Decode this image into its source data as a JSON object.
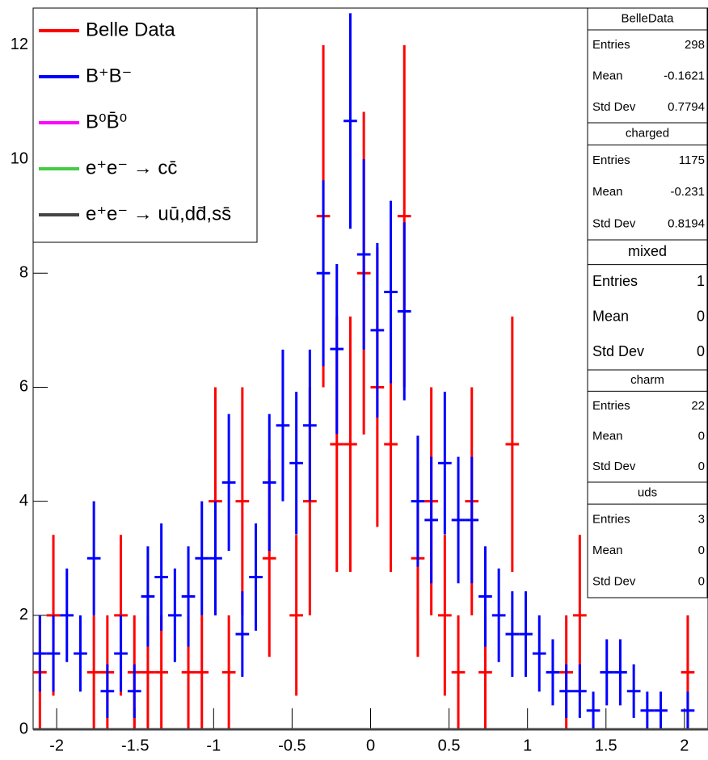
{
  "chart_data": {
    "type": "errorbar_histogram",
    "bins": [
      -2.15,
      -2.064,
      -1.978,
      -1.892,
      -1.806,
      -1.72,
      -1.634,
      -1.548,
      -1.462,
      -1.376,
      -1.29,
      -1.204,
      -1.118,
      -1.032,
      -0.946,
      -0.86,
      -0.774,
      -0.688,
      -0.602,
      -0.516,
      -0.43,
      -0.344,
      -0.258,
      -0.172,
      -0.086,
      0,
      0.086,
      0.172,
      0.258,
      0.344,
      0.43,
      0.516,
      0.602,
      0.688,
      0.774,
      0.86,
      0.946,
      1.032,
      1.118,
      1.204,
      1.29,
      1.376,
      1.462,
      1.548,
      1.634,
      1.72,
      1.806,
      1.892,
      1.978,
      2.064,
      2.15
    ],
    "series": [
      {
        "name": "Belle Data",
        "color": "#ff0000",
        "values": [
          1,
          2,
          null,
          null,
          1,
          1,
          2,
          1,
          1,
          1,
          null,
          1,
          1,
          4,
          1,
          4,
          null,
          3,
          null,
          2,
          4,
          9,
          5,
          5,
          8,
          6,
          5,
          9,
          3,
          4,
          2,
          1,
          4,
          1,
          null,
          5,
          null,
          null,
          null,
          1,
          2,
          null,
          null,
          null,
          null,
          null,
          null,
          null,
          1,
          null
        ],
        "errors": [
          1,
          1.41,
          null,
          null,
          1,
          1,
          1.41,
          1,
          1,
          1,
          null,
          1,
          1,
          2,
          1,
          2,
          null,
          1.73,
          null,
          1.41,
          2,
          3,
          2.24,
          2.24,
          2.83,
          2.45,
          2.24,
          3,
          1.73,
          2,
          1.41,
          1,
          2,
          1,
          null,
          2.24,
          null,
          null,
          null,
          1,
          1.41,
          null,
          null,
          null,
          null,
          null,
          null,
          null,
          1,
          null
        ]
      },
      {
        "name": "B⁺B⁻",
        "color": "#0000ff",
        "values": [
          1.33,
          1.33,
          2,
          1.33,
          3,
          0.67,
          1.33,
          0.67,
          2.33,
          2.67,
          2,
          2.33,
          3,
          3,
          4.33,
          1.67,
          2.67,
          4.33,
          5.33,
          4.67,
          5.33,
          8,
          6.67,
          10.67,
          8.33,
          7,
          7.67,
          7.33,
          4,
          3.67,
          4.67,
          3.67,
          3.67,
          2.33,
          2,
          1.67,
          1.67,
          1.33,
          1,
          0.67,
          0.67,
          0.33,
          1,
          1,
          0.67,
          0.33,
          0.33,
          null,
          0.33,
          null
        ],
        "errors": [
          0.67,
          0.67,
          0.82,
          0.67,
          1,
          0.47,
          0.67,
          0.47,
          0.88,
          0.94,
          0.82,
          0.88,
          1,
          1,
          1.2,
          0.75,
          0.94,
          1.2,
          1.33,
          1.25,
          1.33,
          1.63,
          1.49,
          1.89,
          1.67,
          1.53,
          1.6,
          1.56,
          1.15,
          1.11,
          1.25,
          1.11,
          1.11,
          0.88,
          0.82,
          0.75,
          0.75,
          0.67,
          0.58,
          0.47,
          0.47,
          0.33,
          0.58,
          0.58,
          0.47,
          0.33,
          0.33,
          null,
          0.33,
          null
        ]
      },
      {
        "name": "B⁰B̄⁰",
        "color": "#ff00ff"
      },
      {
        "name": "e⁺e⁻ → cc̄",
        "color": "#44cc44"
      },
      {
        "name": "e⁺e⁻ → uū,dd̄,ss̄",
        "color": "#444444"
      }
    ],
    "xlim": [
      -2.15,
      2.15
    ],
    "xticks": [
      -2,
      -1.5,
      -1,
      -0.5,
      0,
      0.5,
      1,
      1.5,
      2
    ],
    "ylim": [
      0,
      12.65
    ],
    "yticks": [
      0,
      2,
      4,
      6,
      8,
      10,
      12
    ],
    "legend": "top-left",
    "stat_labels": [
      "Entries",
      "Mean",
      "Std Dev"
    ],
    "stats": [
      {
        "name": "BelleData",
        "values": [
          298,
          -0.1621,
          0.7794
        ]
      },
      {
        "name": "charged",
        "values": [
          1175,
          -0.231,
          0.8194
        ]
      },
      {
        "name": "mixed",
        "values": [
          1,
          0,
          0
        ]
      },
      {
        "name": "charm",
        "values": [
          22,
          0,
          0
        ]
      },
      {
        "name": "uds",
        "values": [
          3,
          0,
          0
        ]
      }
    ]
  }
}
